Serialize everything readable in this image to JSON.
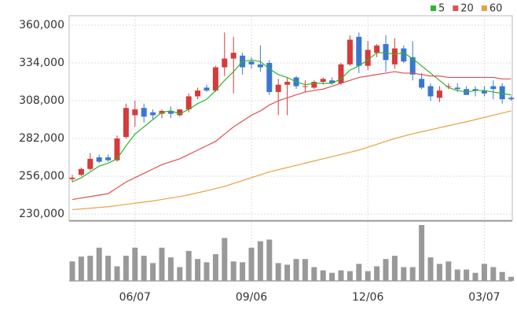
{
  "chart_data": {
    "type": "candlestick",
    "up_color": "#d63a3a",
    "down_color": "#3a78d0",
    "volume_color": "#999999",
    "grid": true,
    "legend": "top-right",
    "ylim": [
      230000,
      360000
    ],
    "yticks": [
      {
        "value": 230000,
        "label": "230,000"
      },
      {
        "value": 256000,
        "label": "256,000"
      },
      {
        "value": 282000,
        "label": "282,000"
      },
      {
        "value": 308000,
        "label": "308,000"
      },
      {
        "value": 334000,
        "label": "334,000"
      },
      {
        "value": 360000,
        "label": "360,000"
      }
    ],
    "categories": [
      null,
      null,
      null,
      null,
      null,
      null,
      null,
      "06/07",
      null,
      null,
      null,
      null,
      null,
      null,
      null,
      null,
      null,
      null,
      null,
      null,
      "09/06",
      null,
      null,
      null,
      null,
      null,
      null,
      null,
      null,
      null,
      null,
      null,
      null,
      "12/06",
      null,
      null,
      null,
      null,
      null,
      null,
      null,
      null,
      null,
      null,
      null,
      null,
      "03/07",
      null,
      null,
      null
    ],
    "open": [
      254000,
      257000,
      261000,
      269000,
      269000,
      267000,
      283000,
      298000,
      303000,
      300000,
      299000,
      301000,
      298000,
      302000,
      311000,
      317000,
      315000,
      331000,
      337000,
      339000,
      335000,
      333000,
      334000,
      314000,
      319000,
      324000,
      318000,
      317000,
      321000,
      322000,
      320000,
      333000,
      352000,
      332000,
      341000,
      347000,
      333000,
      344000,
      338000,
      323000,
      318000,
      310000,
      318000,
      317000,
      316000,
      316000,
      315000,
      318000,
      318000,
      310000
    ],
    "high": [
      257000,
      262000,
      272000,
      271000,
      271000,
      284000,
      306000,
      308000,
      306000,
      302000,
      302000,
      304000,
      302000,
      313000,
      317000,
      319000,
      332000,
      355000,
      352000,
      341000,
      338000,
      346000,
      336000,
      323000,
      324000,
      325000,
      322000,
      322000,
      324000,
      324000,
      334000,
      353000,
      355000,
      349000,
      347000,
      353000,
      351000,
      346000,
      349000,
      327000,
      320000,
      318000,
      320000,
      320000,
      318000,
      318000,
      318000,
      322000,
      320000,
      311000
    ],
    "low": [
      252000,
      256000,
      260000,
      265000,
      266000,
      266000,
      282000,
      290000,
      293000,
      295000,
      296000,
      296000,
      297000,
      300000,
      309000,
      314000,
      314000,
      325000,
      313000,
      326000,
      330000,
      328000,
      312000,
      298000,
      298000,
      316000,
      314000,
      316000,
      319000,
      319000,
      319000,
      332000,
      327000,
      329000,
      338000,
      328000,
      330000,
      334000,
      322000,
      316000,
      308000,
      307000,
      316000,
      314000,
      312000,
      311000,
      311000,
      309000,
      306000,
      308000
    ],
    "close": [
      255000,
      261000,
      268000,
      266000,
      267000,
      282000,
      303000,
      302000,
      297000,
      298000,
      301000,
      299000,
      302000,
      311000,
      315000,
      315000,
      331000,
      337000,
      341000,
      331000,
      333000,
      331000,
      314000,
      319000,
      321000,
      318000,
      318000,
      321000,
      323000,
      320000,
      333000,
      350000,
      332000,
      343000,
      346000,
      336000,
      344000,
      335000,
      326000,
      317000,
      311000,
      315000,
      318000,
      316000,
      312000,
      315000,
      313000,
      316000,
      309000,
      309000
    ],
    "volume": [
      24,
      30,
      31,
      41,
      31,
      18,
      31,
      41,
      31,
      22,
      41,
      29,
      17,
      37,
      27,
      23,
      33,
      53,
      24,
      23,
      41,
      49,
      51,
      22,
      20,
      27,
      27,
      17,
      13,
      10,
      13,
      12,
      21,
      12,
      18,
      27,
      31,
      17,
      17,
      69,
      29,
      21,
      24,
      14,
      14,
      10,
      21,
      17,
      11,
      5
    ],
    "series": [
      {
        "name": "5",
        "color": "#2db52d",
        "values": [
          252000,
          255000,
          259000,
          263000,
          265000,
          268000,
          277000,
          285000,
          290000,
          295000,
          300000,
          301000,
          299000,
          302000,
          306000,
          309000,
          315000,
          322000,
          328000,
          335000,
          336000,
          335000,
          330000,
          326000,
          324000,
          321000,
          319000,
          320000,
          320000,
          320000,
          323000,
          329000,
          332000,
          336000,
          341000,
          341000,
          340000,
          341000,
          337000,
          332000,
          327000,
          322000,
          317000,
          315000,
          314000,
          315000,
          315000,
          314000,
          313000,
          312000
        ]
      },
      {
        "name": "20",
        "color": "#e05050",
        "values": [
          240000,
          241000,
          242000,
          243000,
          244000,
          248000,
          252000,
          255000,
          258000,
          261000,
          264000,
          266000,
          268000,
          271000,
          274000,
          277000,
          280000,
          285000,
          290000,
          294000,
          298000,
          301000,
          305000,
          308000,
          310000,
          312000,
          314000,
          315000,
          316000,
          318000,
          320000,
          322000,
          324000,
          325000,
          326000,
          327000,
          328000,
          327000,
          327000,
          326000,
          325000,
          325000,
          324000,
          324000,
          324000,
          324000,
          324000,
          324000,
          323000,
          323000
        ]
      },
      {
        "name": "60",
        "color": "#e8a040",
        "values": [
          233000,
          233500,
          234000,
          234500,
          235000,
          235800,
          236600,
          237400,
          238200,
          239000,
          240000,
          241000,
          242000,
          243200,
          244600,
          246000,
          247500,
          249000,
          251000,
          253000,
          255000,
          257000,
          259000,
          260500,
          262000,
          263500,
          265000,
          266500,
          268000,
          269500,
          271000,
          272500,
          274000,
          276000,
          278000,
          280000,
          282000,
          283600,
          285200,
          286600,
          288000,
          289400,
          290800,
          292200,
          293500,
          295000,
          296500,
          298000,
          299500,
          301000
        ]
      }
    ]
  }
}
